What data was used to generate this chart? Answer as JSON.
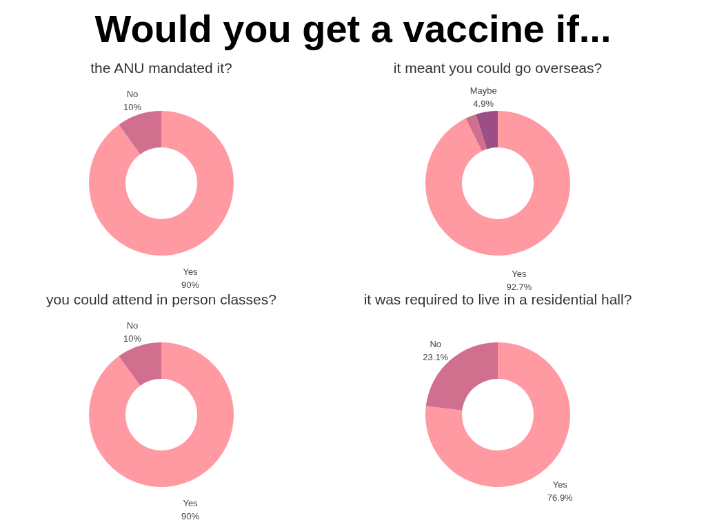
{
  "chart_data": [
    {
      "type": "other",
      "title": "Would you get a vaccine if..."
    },
    {
      "type": "donut",
      "title": "the ANU mandated it?",
      "categories": [
        "Yes",
        "No"
      ],
      "values": [
        90,
        10
      ],
      "colors": [
        "#ff9aa2",
        "#d16f8f"
      ],
      "value_labels": [
        "90%",
        "10%"
      ]
    },
    {
      "type": "donut",
      "title": "it meant you could go overseas?",
      "categories": [
        "Yes",
        null,
        "Maybe"
      ],
      "values": [
        92.7,
        2.4,
        4.9
      ],
      "colors": [
        "#ff9aa2",
        "#d16f8f",
        "#9c4f87"
      ],
      "value_labels": [
        "92.7%",
        null,
        "4.9%"
      ]
    },
    {
      "type": "donut",
      "title": "you could attend in person classes?",
      "categories": [
        "Yes",
        "No"
      ],
      "values": [
        90,
        10
      ],
      "colors": [
        "#ff9aa2",
        "#d16f8f"
      ],
      "value_labels": [
        "90%",
        "10%"
      ]
    },
    {
      "type": "donut",
      "title": "it was required to live in a residential hall?",
      "categories": [
        "Yes",
        "No"
      ],
      "values": [
        76.9,
        23.1
      ],
      "colors": [
        "#ff9aa2",
        "#d16f8f"
      ],
      "value_labels": [
        "76.9%",
        "23.1%"
      ]
    }
  ]
}
